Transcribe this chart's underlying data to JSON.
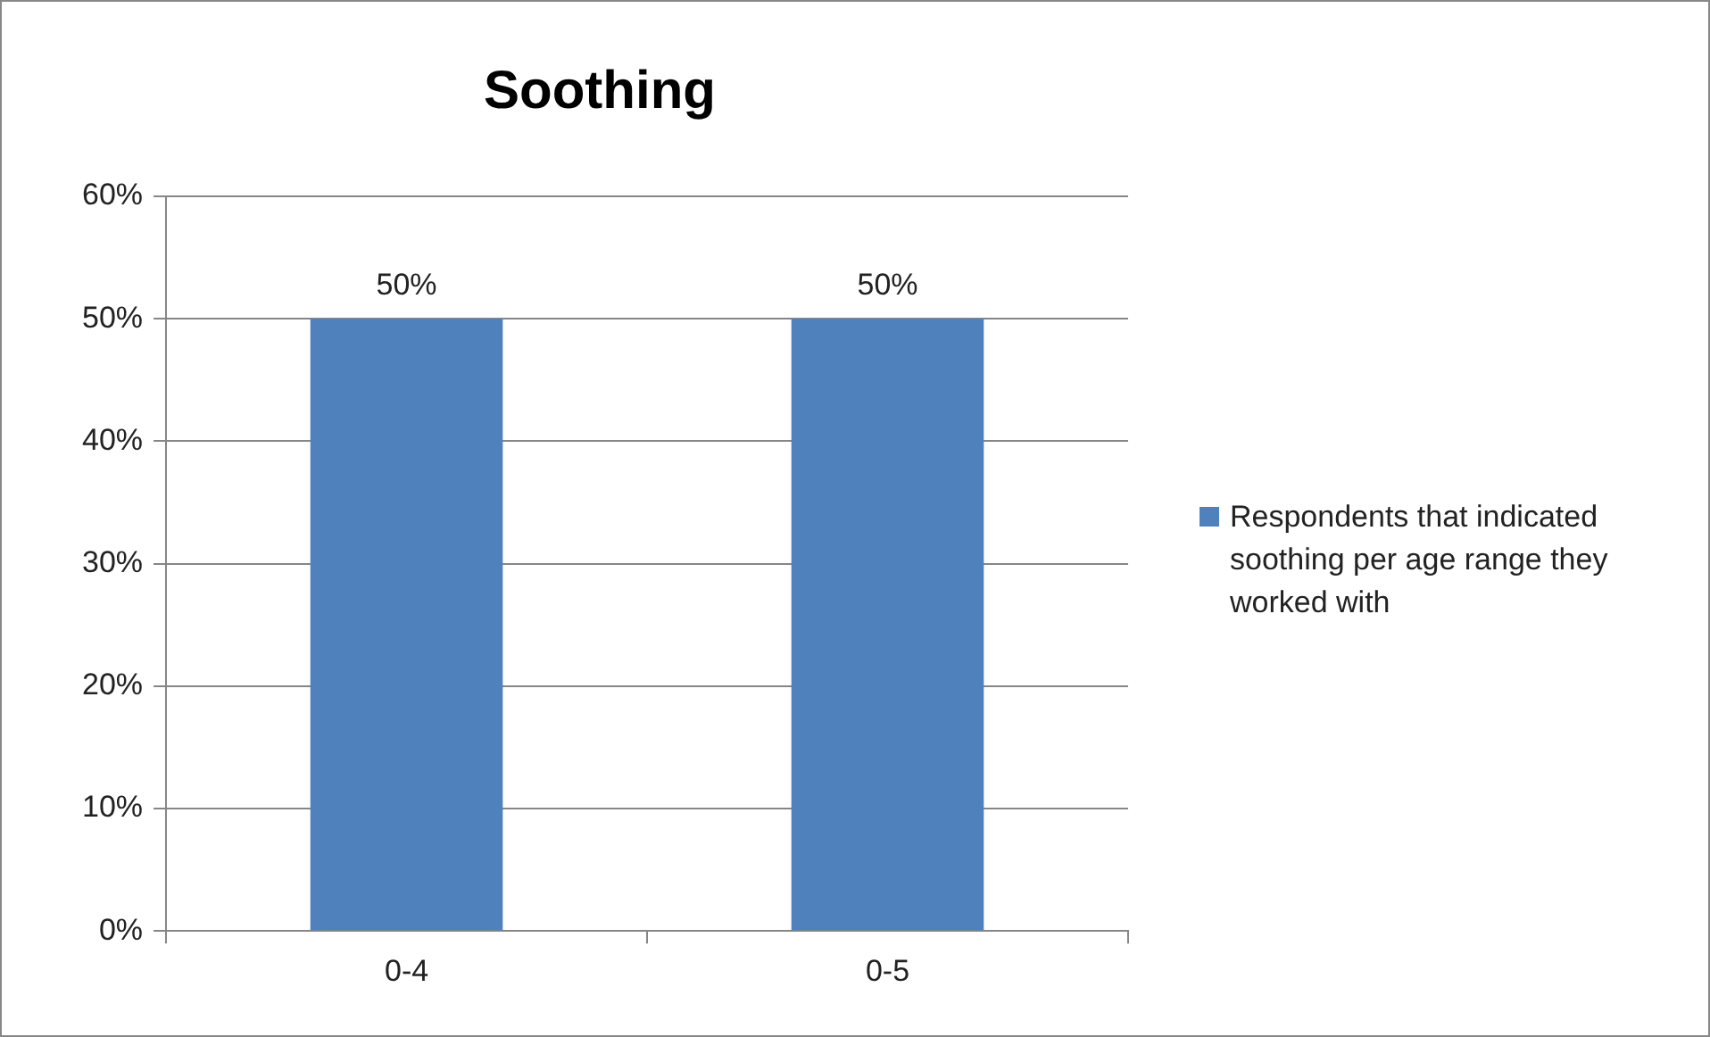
{
  "chart_data": {
    "type": "bar",
    "title": "Soothing",
    "categories": [
      "0-4",
      "0-5"
    ],
    "series": [
      {
        "name": "Respondents that indicated soothing per age range they worked with",
        "color": "#4f81bd",
        "values": [
          50,
          50
        ],
        "value_labels": [
          "50%",
          "50%"
        ]
      }
    ],
    "ylim": [
      0,
      60
    ],
    "yticks": [
      {
        "value": 0,
        "label": "0%"
      },
      {
        "value": 10,
        "label": "10%"
      },
      {
        "value": 20,
        "label": "20%"
      },
      {
        "value": 30,
        "label": "30%"
      },
      {
        "value": 40,
        "label": "40%"
      },
      {
        "value": 50,
        "label": "50%"
      },
      {
        "value": 60,
        "label": "60%"
      }
    ],
    "grid": "y",
    "legend": "right"
  }
}
